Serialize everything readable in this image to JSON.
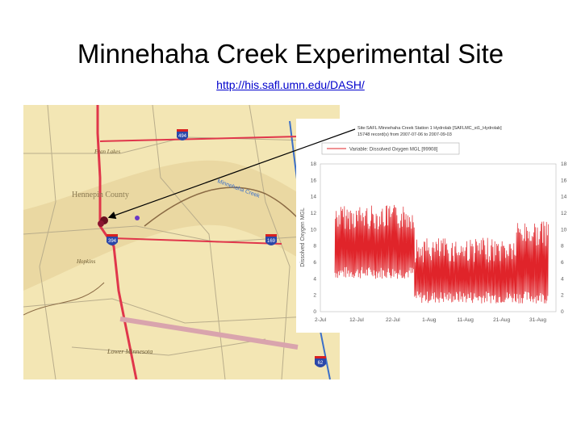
{
  "slide": {
    "title": "Minnehaha Creek Experimental Site",
    "link": "http://his.safl.umn.edu/DASH/"
  },
  "map": {
    "labels": {
      "town1": "Fran Lakes",
      "county": "Hennepin County",
      "creek": "Minnehaha Creek",
      "town2": "Hopkins",
      "town3": "Lower Minnesota"
    },
    "shields": [
      "494",
      "394",
      "169",
      "62"
    ],
    "colors": {
      "land": "#f3e6b4",
      "band": "#ead8a2",
      "road": "#e0364b",
      "pipe": "#3b6fc9"
    }
  },
  "chart_data": {
    "type": "line",
    "header_line1": "Site:SAFL Minnehaha Creek Station 1 Hydrolab [SAFLMC_st1_Hydrolab]",
    "header_line2": "15748 record(s) from 2007-07-06 to 2007-09-03",
    "legend": "Variable: Dissolved Oxygen MGL [99908]",
    "ylabel": "Dissolved Oxygen MGL",
    "ylim": [
      0,
      18
    ],
    "y_ticks_left": [
      "18",
      "16",
      "14",
      "12",
      "10",
      "8",
      "6",
      "4",
      "2",
      "0"
    ],
    "y_ticks_right": [
      "18",
      "16",
      "14",
      "12",
      "10",
      "8",
      "6",
      "4",
      "2",
      "0"
    ],
    "x_ticks": [
      "2-Jul",
      "12-Jul",
      "22-Jul",
      "1-Aug",
      "11-Aug",
      "21-Aug",
      "31-Aug"
    ],
    "line_color": "#e0242a",
    "segments": [
      {
        "from": "2007-07-06",
        "to": "2007-07-28",
        "low": 4,
        "high": 13
      },
      {
        "from": "2007-07-28",
        "to": "2007-08-25",
        "low": 1,
        "high": 9
      },
      {
        "from": "2007-08-25",
        "to": "2007-09-03",
        "low": 1,
        "high": 11
      }
    ]
  }
}
